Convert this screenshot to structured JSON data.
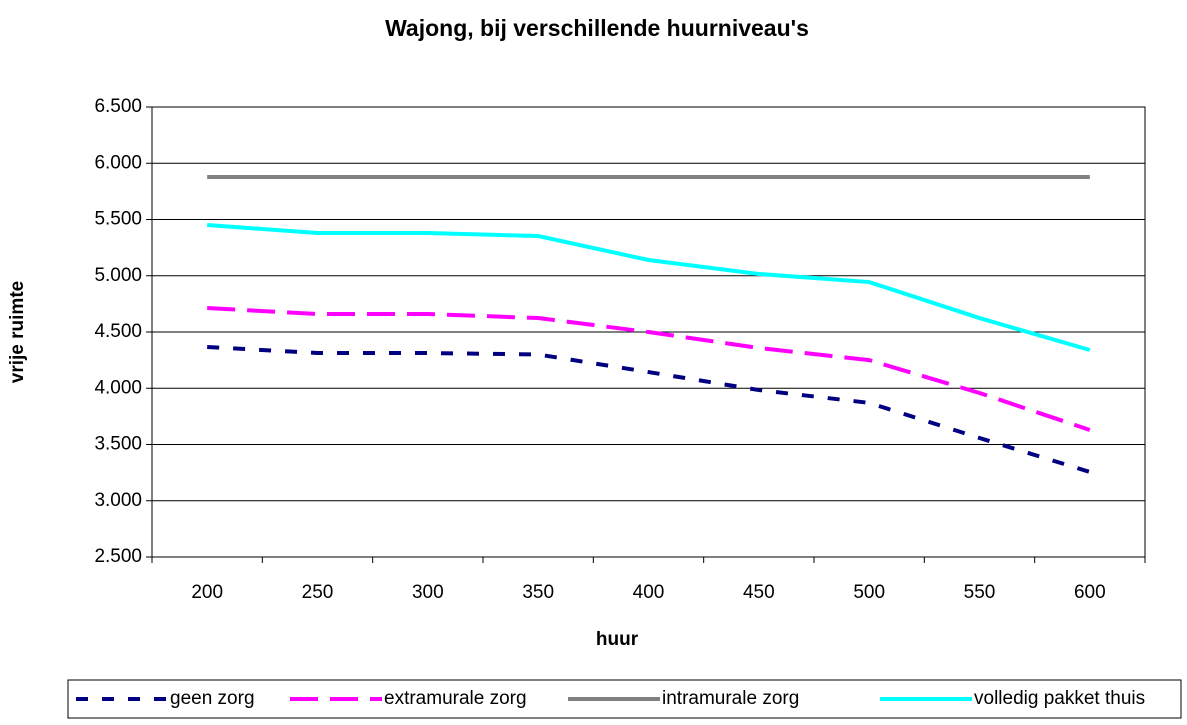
{
  "chart_data": {
    "type": "line",
    "title": "Wajong, bij verschillende huurniveau's",
    "x_label": "huur",
    "y_label": "vrije ruimte",
    "categories": [
      "200",
      "250",
      "300",
      "350",
      "400",
      "450",
      "500",
      "550",
      "600"
    ],
    "series": [
      {
        "name": "geen zorg",
        "color": "#000080",
        "dash": "12,14",
        "values": [
          4367,
          4313,
          4313,
          4300,
          4144,
          3984,
          3870,
          3558,
          3256
        ]
      },
      {
        "name": "extramurale zorg",
        "color": "#ff00ff",
        "dash": "28,12",
        "values": [
          4713,
          4660,
          4660,
          4624,
          4500,
          4358,
          4250,
          3958,
          3629
        ]
      },
      {
        "name": "intramurale zorg",
        "color": "#808080",
        "dash": "none",
        "values": [
          5878,
          5878,
          5878,
          5878,
          5878,
          5878,
          5878,
          5878,
          5878
        ]
      },
      {
        "name": "volledig pakket thuis",
        "color": "#00ffff",
        "dash": "none",
        "values": [
          5451,
          5380,
          5380,
          5353,
          5140,
          5016,
          4944,
          4624,
          4340
        ]
      }
    ],
    "ylim": [
      2500,
      6500
    ],
    "yticks": [
      {
        "value": 2500,
        "label": "2.500"
      },
      {
        "value": 3000,
        "label": "3.000"
      },
      {
        "value": 3500,
        "label": "3.500"
      },
      {
        "value": 4000,
        "label": "4.000"
      },
      {
        "value": 4500,
        "label": "4.500"
      },
      {
        "value": 5000,
        "label": "5.000"
      },
      {
        "value": 5500,
        "label": "5.500"
      },
      {
        "value": 6000,
        "label": "6.000"
      },
      {
        "value": 6500,
        "label": "6.500"
      }
    ],
    "grid": true,
    "legend": "bottom"
  }
}
